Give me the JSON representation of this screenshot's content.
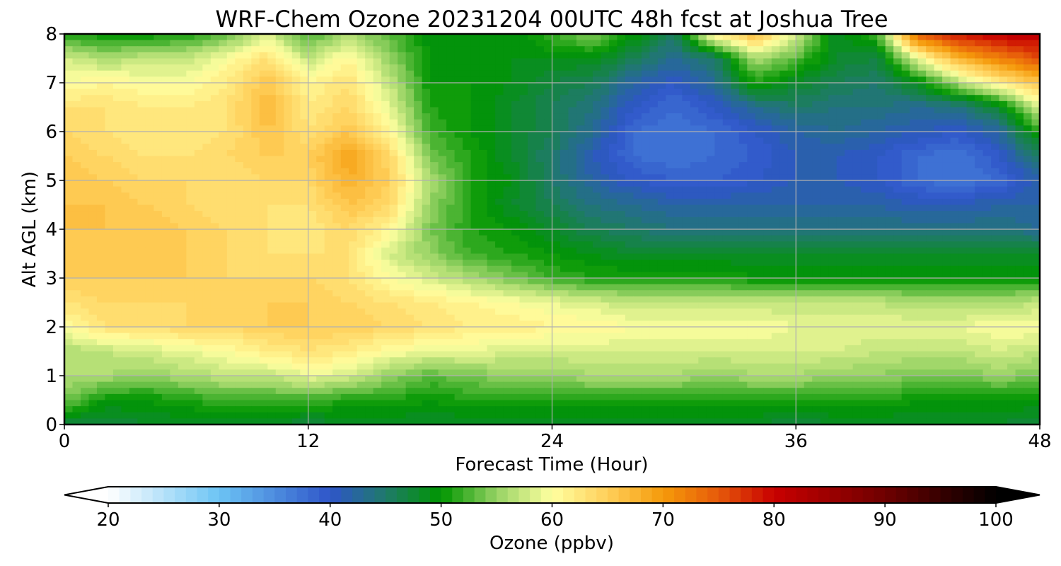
{
  "chart_data": {
    "type": "heatmap",
    "title": "WRF-Chem Ozone  20231204 00UTC 48h fcst at Joshua Tree",
    "xlabel": "Forecast Time (Hour)",
    "ylabel": "Alt AGL (km)",
    "xlim": [
      0,
      48
    ],
    "ylim": [
      0,
      8
    ],
    "x_ticks": [
      "0",
      "12",
      "24",
      "36",
      "48"
    ],
    "y_ticks": [
      "0",
      "1",
      "2",
      "3",
      "4",
      "5",
      "6",
      "7",
      "8"
    ],
    "grid": true,
    "colorbar": {
      "label": "Ozone  (ppbv)",
      "min": 20,
      "max": 100,
      "step": 1,
      "extend": "both",
      "tick_labels": [
        "20",
        "30",
        "40",
        "50",
        "60",
        "70",
        "80",
        "90",
        "100"
      ],
      "stops": [
        {
          "v": 20,
          "c": "#ffffff"
        },
        {
          "v": 30,
          "c": "#6cc4f4"
        },
        {
          "v": 40,
          "c": "#2f55c9"
        },
        {
          "v": 45,
          "c": "#1f7a6a"
        },
        {
          "v": 50,
          "c": "#009600"
        },
        {
          "v": 55,
          "c": "#96d264"
        },
        {
          "v": 60,
          "c": "#ffffa0"
        },
        {
          "v": 65,
          "c": "#ffcf5a"
        },
        {
          "v": 70,
          "c": "#f59a0a"
        },
        {
          "v": 75,
          "c": "#e65a0a"
        },
        {
          "v": 80,
          "c": "#c80000"
        },
        {
          "v": 90,
          "c": "#6e0000"
        },
        {
          "v": 100,
          "c": "#000000"
        }
      ]
    },
    "hours": [
      0,
      2,
      4,
      6,
      8,
      10,
      12,
      14,
      16,
      18,
      20,
      22,
      24,
      26,
      28,
      30,
      32,
      34,
      36,
      38,
      40,
      42,
      44,
      46,
      48
    ],
    "altitudes_km": [
      0,
      0.5,
      1,
      1.5,
      2,
      2.5,
      3,
      3.5,
      4,
      4.5,
      5,
      5.5,
      6,
      6.5,
      7,
      7.5,
      8
    ],
    "values_ppbv": [
      [
        47,
        47,
        48,
        48,
        48,
        48,
        47,
        48,
        48,
        48,
        48,
        48,
        48,
        48,
        48,
        48,
        48,
        48,
        47,
        48,
        48,
        48,
        48,
        48,
        47
      ],
      [
        54,
        50,
        50,
        51,
        52,
        52,
        52,
        51,
        51,
        50,
        51,
        51,
        51,
        51,
        51,
        51,
        51,
        51,
        51,
        51,
        51,
        50,
        50,
        50,
        50
      ],
      [
        56,
        56,
        55,
        56,
        57,
        57,
        59,
        58,
        55,
        53,
        54,
        55,
        55,
        56,
        56,
        56,
        55,
        56,
        56,
        55,
        55,
        54,
        54,
        55,
        54
      ],
      [
        56,
        57,
        58,
        59,
        60,
        62,
        63,
        62,
        60,
        59,
        59,
        58,
        58,
        58,
        58,
        58,
        58,
        58,
        58,
        58,
        57,
        57,
        57,
        58,
        57
      ],
      [
        60,
        63,
        63,
        64,
        64,
        65,
        65,
        65,
        64,
        63,
        62,
        62,
        61,
        61,
        60,
        60,
        60,
        60,
        59,
        59,
        59,
        59,
        59,
        60,
        60
      ],
      [
        63,
        64,
        64,
        64,
        64,
        65,
        65,
        64,
        63,
        62,
        61,
        60,
        59,
        58,
        57,
        57,
        57,
        57,
        57,
        57,
        57,
        56,
        56,
        56,
        57
      ],
      [
        65,
        65,
        65,
        65,
        64,
        64,
        64,
        63,
        60,
        58,
        56,
        54,
        52,
        51,
        51,
        51,
        51,
        50,
        50,
        50,
        50,
        50,
        50,
        50,
        50
      ],
      [
        65,
        65,
        66,
        65,
        64,
        63,
        63,
        63,
        58,
        55,
        52,
        51,
        50,
        49,
        48,
        48,
        48,
        48,
        48,
        48,
        48,
        48,
        48,
        48,
        48
      ],
      [
        66,
        66,
        66,
        65,
        64,
        63,
        62,
        64,
        61,
        54,
        51,
        50,
        48,
        46,
        45,
        44,
        44,
        44,
        44,
        44,
        44,
        44,
        44,
        44,
        43
      ],
      [
        66,
        66,
        65,
        64,
        63,
        63,
        63,
        66,
        64,
        55,
        51,
        48,
        46,
        44,
        43,
        42,
        42,
        42,
        42,
        42,
        42,
        41,
        41,
        42,
        42
      ],
      [
        66,
        65,
        64,
        64,
        63,
        64,
        64,
        68,
        65,
        56,
        51,
        49,
        45,
        42,
        40,
        39,
        39,
        40,
        41,
        41,
        40,
        38,
        37,
        38,
        42
      ],
      [
        65,
        64,
        63,
        63,
        64,
        65,
        65,
        69,
        64,
        54,
        51,
        48,
        45,
        41,
        38,
        37,
        38,
        39,
        41,
        41,
        40,
        38,
        37,
        40,
        45
      ],
      [
        64,
        63,
        62,
        62,
        63,
        66,
        63,
        66,
        61,
        52,
        50,
        48,
        46,
        43,
        38,
        37,
        38,
        40,
        42,
        43,
        42,
        41,
        40,
        42,
        51
      ],
      [
        63,
        63,
        62,
        62,
        63,
        67,
        62,
        64,
        59,
        51,
        50,
        48,
        46,
        44,
        40,
        38,
        40,
        43,
        45,
        44,
        44,
        43,
        44,
        48,
        59
      ],
      [
        60,
        61,
        60,
        60,
        62,
        66,
        61,
        63,
        57,
        50,
        50,
        49,
        47,
        46,
        42,
        40,
        43,
        51,
        48,
        46,
        45,
        49,
        56,
        62,
        66
      ],
      [
        58,
        56,
        57,
        57,
        60,
        63,
        57,
        61,
        55,
        50,
        49,
        49,
        49,
        49,
        46,
        43,
        45,
        56,
        53,
        48,
        47,
        59,
        68,
        72,
        76
      ],
      [
        51,
        50,
        50,
        51,
        53,
        58,
        52,
        56,
        53,
        49,
        49,
        49,
        52,
        55,
        50,
        45,
        62,
        67,
        58,
        48,
        52,
        75,
        79,
        81,
        81
      ]
    ]
  }
}
